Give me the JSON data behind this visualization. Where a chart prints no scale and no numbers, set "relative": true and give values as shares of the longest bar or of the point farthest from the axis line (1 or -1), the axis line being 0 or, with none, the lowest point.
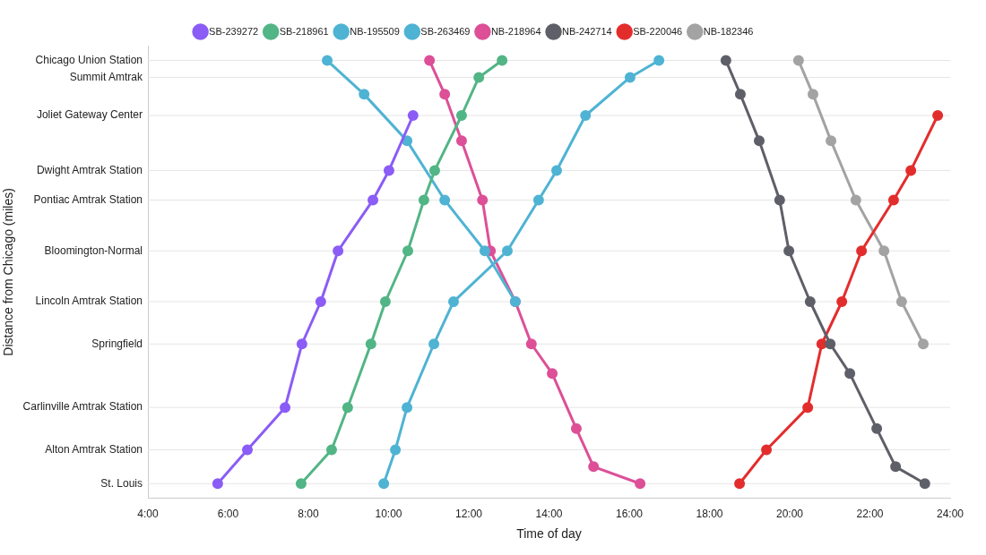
{
  "chart_data": {
    "type": "line",
    "xlabel": "Time of day",
    "annotations": [
      "Distance from Chicago (miles)"
    ],
    "xlim": [
      4,
      24
    ],
    "xticks": [
      {
        "value": 4,
        "label": "4:00"
      },
      {
        "value": 6,
        "label": "6:00"
      },
      {
        "value": 8,
        "label": "8:00"
      },
      {
        "value": 10,
        "label": "10:00"
      },
      {
        "value": 12,
        "label": "12:00"
      },
      {
        "value": 14,
        "label": "14:00"
      },
      {
        "value": 16,
        "label": "16:00"
      },
      {
        "value": 18,
        "label": "18:00"
      },
      {
        "value": 20,
        "label": "20:00"
      },
      {
        "value": 22,
        "label": "22:00"
      },
      {
        "value": 24,
        "label": "24:00"
      }
    ],
    "relative": true,
    "ref_lines": [
      {
        "axis": "y",
        "value": 1,
        "label": "Chicago Union Station",
        "color": "#e5e5e5"
      },
      {
        "axis": "y",
        "value": 0.96,
        "label": "Summit Amtrak",
        "color": "#e5e5e5"
      },
      {
        "axis": "y",
        "value": 0.87,
        "label": "Joliet Gateway Center",
        "color": "#e5e5e5"
      },
      {
        "axis": "y",
        "value": 0.74,
        "label": "Dwight Amtrak Station",
        "color": "#e5e5e5"
      },
      {
        "axis": "y",
        "value": 0.67,
        "label": "Pontiac Amtrak Station",
        "color": "#e5e5e5"
      },
      {
        "axis": "y",
        "value": 0.55,
        "label": "Bloomington-Normal",
        "color": "#e5e5e5"
      },
      {
        "axis": "y",
        "value": 0.43,
        "label": "Lincoln Amtrak Station",
        "color": "#e5e5e5"
      },
      {
        "axis": "y",
        "value": 0.33,
        "label": "Springfield",
        "color": "#e5e5e5"
      },
      {
        "axis": "y",
        "value": 0.18,
        "label": "Carlinville Amtrak Station",
        "color": "#e5e5e5"
      },
      {
        "axis": "y",
        "value": 0.08,
        "label": "Alton Amtrak Station",
        "color": "#e5e5e5"
      },
      {
        "axis": "y",
        "value": 0,
        "label": "St. Louis",
        "color": "#e5e5e5"
      }
    ],
    "grid": false,
    "legend": "top",
    "marker": "circle",
    "line_style": "solid",
    "series": [
      {
        "name": "SB-239272",
        "color": "#8b5cf6",
        "x": [
          5.74,
          6.48,
          7.42,
          7.84,
          8.31,
          8.74,
          9.61,
          10.01,
          10.61
        ],
        "values": [
          0,
          0.08,
          0.18,
          0.33,
          0.43,
          0.55,
          0.67,
          0.74,
          0.87
        ]
      },
      {
        "name": "SB-218961",
        "color": "#52b585",
        "x": [
          7.82,
          8.58,
          8.98,
          9.56,
          9.92,
          10.48,
          10.88,
          11.15,
          11.82,
          12.25,
          12.83
        ],
        "values": [
          0,
          0.08,
          0.18,
          0.33,
          0.43,
          0.55,
          0.67,
          0.74,
          0.87,
          0.96,
          1
        ]
      },
      {
        "name": "NB-195509",
        "color": "#4fb3d3",
        "x": [
          8.47,
          9.39,
          10.46,
          11.4,
          12.4,
          13.16
        ],
        "values": [
          1,
          0.92,
          0.81,
          0.67,
          0.55,
          0.43
        ]
      },
      {
        "name": "SB-263469",
        "color": "#4fb3d3",
        "x": [
          9.88,
          10.17,
          10.46,
          11.13,
          11.62,
          12.96,
          13.74,
          14.19,
          14.91,
          16.02,
          16.74
        ],
        "values": [
          0,
          0.08,
          0.18,
          0.33,
          0.43,
          0.55,
          0.67,
          0.74,
          0.87,
          0.96,
          1
        ]
      },
      {
        "name": "NB-218964",
        "color": "#dd4f97",
        "x": [
          11.02,
          11.4,
          11.82,
          12.34,
          12.54,
          13.16,
          13.56,
          14.08,
          14.68,
          15.11,
          16.27
        ],
        "values": [
          1,
          0.92,
          0.81,
          0.67,
          0.55,
          0.43,
          0.33,
          0.26,
          0.13,
          0.04,
          0
        ]
      },
      {
        "name": "NB-242714",
        "color": "#5e5f68",
        "x": [
          18.41,
          18.77,
          19.24,
          19.75,
          19.98,
          20.51,
          21.01,
          21.5,
          22.17,
          22.64,
          23.37
        ],
        "values": [
          1,
          0.92,
          0.81,
          0.67,
          0.55,
          0.43,
          0.33,
          0.26,
          0.13,
          0.04,
          0
        ]
      },
      {
        "name": "SB-220046",
        "color": "#e32d2d",
        "x": [
          18.75,
          19.42,
          20.45,
          20.8,
          21.3,
          21.79,
          22.59,
          23.02,
          23.69
        ],
        "values": [
          0,
          0.08,
          0.18,
          0.33,
          0.43,
          0.55,
          0.67,
          0.74,
          0.87
        ]
      },
      {
        "name": "NB-182346",
        "color": "#a3a3a3",
        "x": [
          20.22,
          20.58,
          21.03,
          21.65,
          22.35,
          22.79,
          23.33
        ],
        "values": [
          1,
          0.92,
          0.81,
          0.67,
          0.55,
          0.43,
          0.33
        ]
      }
    ]
  }
}
